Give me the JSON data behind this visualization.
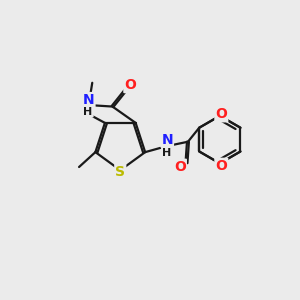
{
  "bg_color": "#ebebeb",
  "bond_color": "#1a1a1a",
  "bond_lw": 1.6,
  "N_color": "#2020ff",
  "O_color": "#ff2020",
  "S_color": "#bbbb00",
  "font_size": 9,
  "fig_size": [
    3.0,
    3.0
  ],
  "dpi": 100,
  "xlim": [
    0,
    10
  ],
  "ylim": [
    0,
    10
  ]
}
